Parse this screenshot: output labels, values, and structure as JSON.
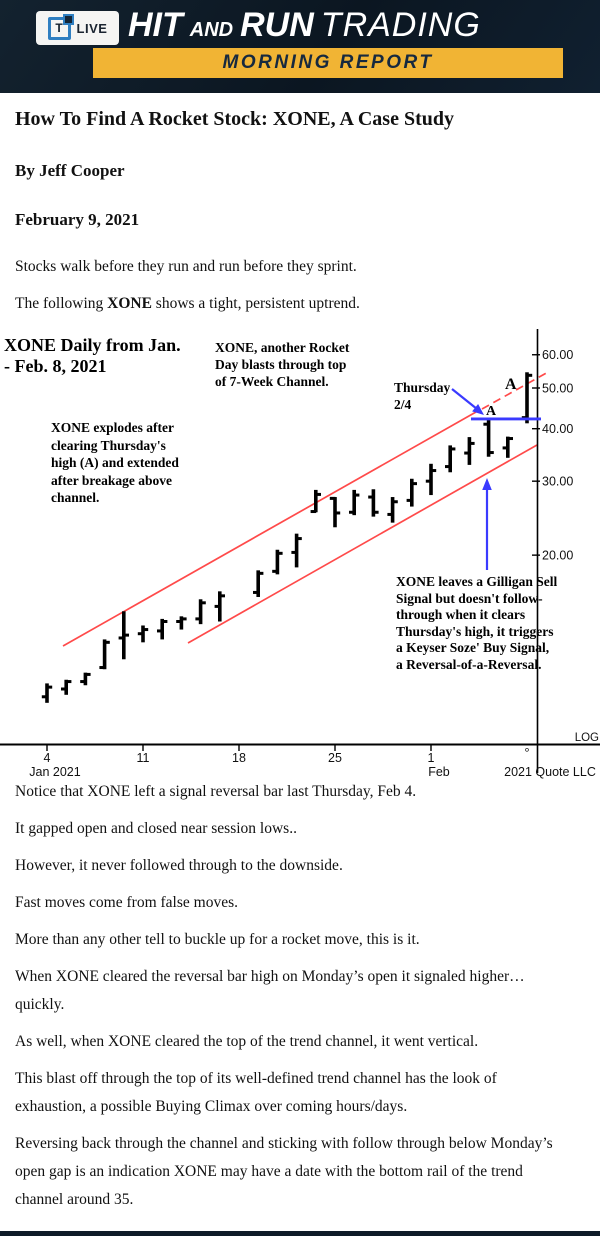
{
  "header": {
    "logo": {
      "t": "T",
      "live": "LIVE"
    },
    "brand": [
      "HIT",
      "AND",
      "RUN",
      "TRADING"
    ],
    "banner": "MORNING REPORT",
    "colors": {
      "bg": "#0e1b28",
      "yellow": "#f1b434",
      "banner_text": "#16293f",
      "logo_blue": "#2f7fc1"
    }
  },
  "article": {
    "title": "How To Find A Rocket Stock: XONE, A Case Study",
    "byline": "By Jeff Cooper",
    "date": "February 9, 2021",
    "intro_paragraphs": [
      {
        "parts": [
          {
            "t": "Stocks walk before they run and run before they sprint."
          }
        ]
      },
      {
        "parts": [
          {
            "t": "The following "
          },
          {
            "t": "XONE",
            "b": true
          },
          {
            "t": " shows a tight, persistent uptrend."
          }
        ]
      }
    ],
    "body_paragraphs": [
      {
        "parts": [
          {
            "t": "Notice that XONE left a signal reversal bar last Thursday, Feb 4."
          }
        ]
      },
      {
        "parts": [
          {
            "t": "It gapped open and closed near session lows.."
          }
        ]
      },
      {
        "parts": [
          {
            "t": "However, it never followed through to the downside."
          }
        ]
      },
      {
        "parts": [
          {
            "t": "Fast moves come from false moves."
          }
        ]
      },
      {
        "parts": [
          {
            "t": "More than any other tell to buckle up for a rocket move, this is it."
          }
        ]
      },
      {
        "parts": [
          {
            "t": "When XONE cleared the reversal bar high on Monday’s open it signaled higher…\nquickly."
          }
        ]
      },
      {
        "parts": [
          {
            "t": "As well, when XONE cleared the top of the trend channel, it went vertical."
          }
        ]
      },
      {
        "parts": [
          {
            "t": "This blast off through the top of its well-defined trend channel has the look of\nexhaustion, a possible Buying Climax over coming hours/days."
          }
        ]
      },
      {
        "parts": [
          {
            "t": "Reversing back through the channel and sticking with follow through below Monday’s\nopen gap is an indication XONE may have a date with the bottom rail of the trend\nchannel around 35."
          }
        ]
      }
    ]
  },
  "chart_data": {
    "type": "ohlc-bar",
    "symbol": "XONE",
    "title": "XONE Daily from Jan.\n- Feb. 8, 2021",
    "scale": "log",
    "scale_label": "LOG",
    "watermark_mark": "°",
    "watermark": "2021 Quote LLC",
    "bar_color": "#000000",
    "channel_color": "#ff4a4a",
    "signal_color": "#3a3aff",
    "thursday_high": 42.2,
    "point_label": "A",
    "y_ticks": [
      {
        "price": 60,
        "label": "60.00"
      },
      {
        "price": 50,
        "label": "50.00"
      },
      {
        "price": 40,
        "label": "40.00"
      },
      {
        "price": 30,
        "label": "30.00"
      },
      {
        "price": 20,
        "label": "20.00"
      }
    ],
    "x_ticks": [
      {
        "slot": 0,
        "label": "4",
        "sub": "Jan 2021"
      },
      {
        "slot": 5,
        "label": "11"
      },
      {
        "slot": 10,
        "label": "18"
      },
      {
        "slot": 15,
        "label": "25"
      },
      {
        "slot": 20,
        "label": "1",
        "sub": "Feb"
      }
    ],
    "bars": [
      {
        "date": "Jan 4",
        "slot": 0,
        "o": 9.2,
        "h": 9.9,
        "l": 8.9,
        "c": 9.7
      },
      {
        "date": "Jan 5",
        "slot": 1,
        "o": 9.6,
        "h": 10.1,
        "l": 9.3,
        "c": 10.0
      },
      {
        "date": "Jan 6",
        "slot": 2,
        "o": 10.0,
        "h": 10.5,
        "l": 9.8,
        "c": 10.4
      },
      {
        "date": "Jan 7",
        "slot": 3,
        "o": 10.8,
        "h": 12.6,
        "l": 10.7,
        "c": 12.4
      },
      {
        "date": "Jan 8",
        "slot": 4,
        "o": 12.7,
        "h": 14.7,
        "l": 11.3,
        "c": 12.9
      },
      {
        "date": "Jan 11",
        "slot": 5,
        "o": 13.0,
        "h": 13.6,
        "l": 12.4,
        "c": 13.3
      },
      {
        "date": "Jan 12",
        "slot": 6,
        "o": 13.2,
        "h": 14.1,
        "l": 12.6,
        "c": 13.9
      },
      {
        "date": "Jan 13",
        "slot": 7,
        "o": 13.9,
        "h": 14.3,
        "l": 13.3,
        "c": 14.1
      },
      {
        "date": "Jan 14",
        "slot": 8,
        "o": 14.1,
        "h": 15.7,
        "l": 13.7,
        "c": 15.4
      },
      {
        "date": "Jan 15",
        "slot": 9,
        "o": 15.1,
        "h": 16.4,
        "l": 13.9,
        "c": 16.0
      },
      {
        "date": "Jan 19",
        "slot": 11,
        "o": 16.3,
        "h": 18.4,
        "l": 15.9,
        "c": 18.1
      },
      {
        "date": "Jan 20",
        "slot": 12,
        "o": 18.3,
        "h": 20.6,
        "l": 18.0,
        "c": 20.2
      },
      {
        "date": "Jan 21",
        "slot": 13,
        "o": 20.3,
        "h": 22.5,
        "l": 18.7,
        "c": 21.9
      },
      {
        "date": "Jan 22",
        "slot": 14,
        "o": 25.4,
        "h": 28.6,
        "l": 25.3,
        "c": 27.9
      },
      {
        "date": "Jan 25",
        "slot": 15,
        "o": 27.3,
        "h": 27.5,
        "l": 23.3,
        "c": 25.2
      },
      {
        "date": "Jan 26",
        "slot": 16,
        "o": 25.3,
        "h": 28.6,
        "l": 24.9,
        "c": 27.8
      },
      {
        "date": "Jan 27",
        "slot": 17,
        "o": 27.5,
        "h": 28.7,
        "l": 24.7,
        "c": 25.3
      },
      {
        "date": "Jan 28",
        "slot": 18,
        "o": 25.0,
        "h": 27.5,
        "l": 23.9,
        "c": 26.8
      },
      {
        "date": "Jan 29",
        "slot": 19,
        "o": 27.0,
        "h": 30.4,
        "l": 26.1,
        "c": 29.6
      },
      {
        "date": "Feb 1",
        "slot": 20,
        "o": 30.0,
        "h": 33.0,
        "l": 27.8,
        "c": 31.8
      },
      {
        "date": "Feb 2",
        "slot": 21,
        "o": 32.5,
        "h": 36.5,
        "l": 31.5,
        "c": 35.8
      },
      {
        "date": "Feb 3",
        "slot": 22,
        "o": 35.0,
        "h": 38.2,
        "l": 32.8,
        "c": 36.9
      },
      {
        "date": "Feb 4 (Thursday)",
        "slot": 23,
        "o": 41.0,
        "h": 42.2,
        "l": 34.3,
        "c": 35.1
      },
      {
        "date": "Feb 5",
        "slot": 24,
        "o": 36.0,
        "h": 38.3,
        "l": 34.1,
        "c": 37.9
      },
      {
        "date": "Feb 8",
        "slot": 25,
        "o": 42.5,
        "h": 54.5,
        "l": 41.2,
        "c": 53.6
      }
    ],
    "annotations": {
      "rocket": "XONE, another Rocket\nDay blasts through top\nof 7-Week Channel.",
      "explode": "XONE explodes after\nclearing Thursday's\nhigh (A) and extended\nafter breakage above\nchannel.",
      "thursday": "Thursday\n2/4",
      "gilligan": "XONE leaves a Gilligan Sell\nSignal but doesn't follow-\nthrough when it clears\nThursday's high, it triggers\na Keyser Soze' Buy Signal,\na Reversal-of-a-Reversal."
    }
  }
}
